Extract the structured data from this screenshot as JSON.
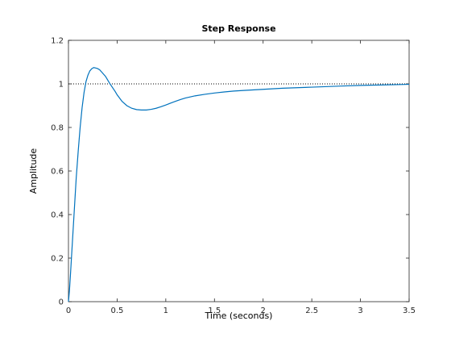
{
  "chart_data": {
    "type": "line",
    "title": "Step Response",
    "xlabel": "Time (seconds)",
    "ylabel": "Amplitude",
    "xlim": [
      0,
      3.5
    ],
    "ylim": [
      0,
      1.2
    ],
    "xticks": [
      0,
      0.5,
      1,
      1.5,
      2,
      2.5,
      3,
      3.5
    ],
    "xtick_labels": [
      "0",
      "0.5",
      "1",
      "1.5",
      "2",
      "2.5",
      "3",
      "3.5"
    ],
    "yticks": [
      0,
      0.2,
      0.4,
      0.6,
      0.8,
      1,
      1.2
    ],
    "ytick_labels": [
      "0",
      "0.2",
      "0.4",
      "0.6",
      "0.8",
      "1",
      "1.2"
    ],
    "grid": false,
    "legend": "none",
    "reference_line": {
      "y": 1,
      "style": "dotted",
      "color": "#000000"
    },
    "series": [
      {
        "color": "#0072bd",
        "x": [
          0,
          0.01,
          0.02,
          0.04,
          0.06,
          0.08,
          0.1,
          0.12,
          0.14,
          0.16,
          0.18,
          0.2,
          0.22,
          0.24,
          0.26,
          0.28,
          0.3,
          0.32,
          0.34,
          0.36,
          0.38,
          0.4,
          0.42,
          0.45,
          0.48,
          0.5,
          0.55,
          0.6,
          0.65,
          0.7,
          0.75,
          0.8,
          0.85,
          0.9,
          0.95,
          1.0,
          1.05,
          1.1,
          1.15,
          1.2,
          1.25,
          1.3,
          1.4,
          1.5,
          1.6,
          1.7,
          1.8,
          2.0,
          2.2,
          2.5,
          2.8,
          3.0,
          3.2,
          3.5
        ],
        "y": [
          0,
          0.05,
          0.12,
          0.27,
          0.42,
          0.57,
          0.69,
          0.8,
          0.89,
          0.96,
          1.01,
          1.04,
          1.06,
          1.07,
          1.075,
          1.073,
          1.07,
          1.065,
          1.055,
          1.045,
          1.035,
          1.02,
          1.005,
          0.985,
          0.965,
          0.95,
          0.92,
          0.9,
          0.888,
          0.882,
          0.88,
          0.88,
          0.883,
          0.888,
          0.895,
          0.903,
          0.912,
          0.92,
          0.928,
          0.935,
          0.94,
          0.945,
          0.952,
          0.958,
          0.963,
          0.967,
          0.97,
          0.975,
          0.98,
          0.985,
          0.99,
          0.993,
          0.995,
          0.998
        ]
      }
    ]
  }
}
